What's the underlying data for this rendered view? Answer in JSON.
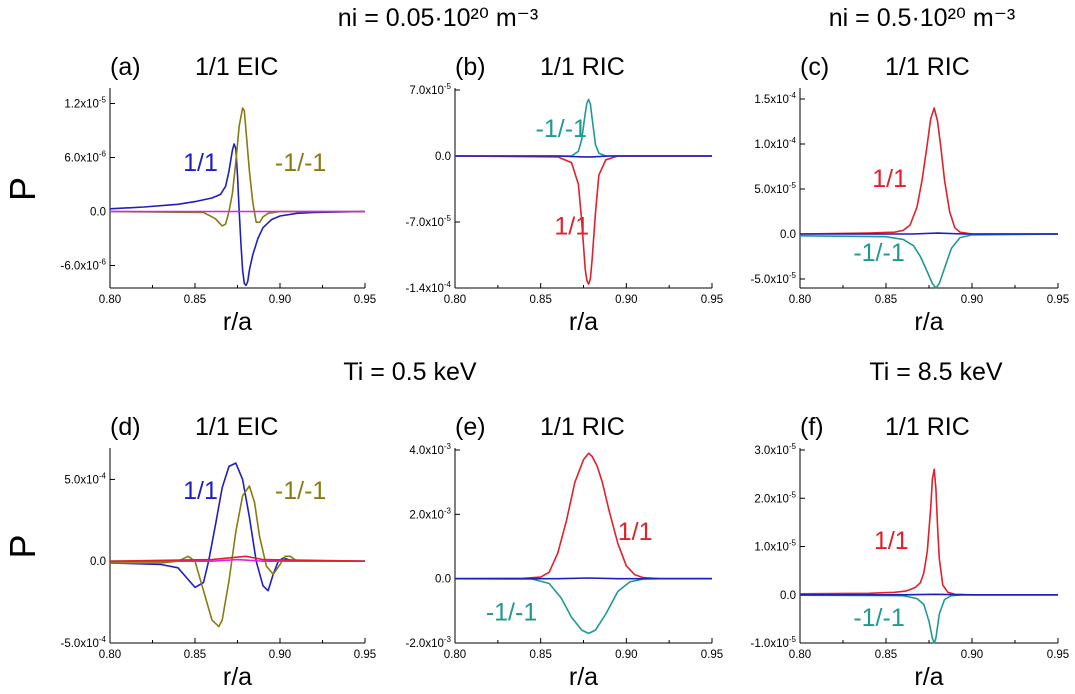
{
  "headers": {
    "ni_low": "ni = 0.05·10²⁰ m⁻³",
    "ni_high": "ni = 0.5·10²⁰ m⁻³",
    "ti_low": "Ti = 0.5 keV",
    "ti_high": "Ti = 8.5 keV"
  },
  "colors": {
    "blue": "#1f1fbf",
    "olive": "#8a7a12",
    "teal": "#1f9a92",
    "red": "#e0202a",
    "magenta": "#e020e0",
    "axis": "#000000"
  },
  "chart_data": [
    {
      "id": "a",
      "type": "line",
      "label": "(a)",
      "title": "1/1 EIC",
      "xlabel": "r/a",
      "ylabel": "P",
      "xlim": [
        0.8,
        0.95
      ],
      "ylim": [
        -8.5e-06,
        1.35e-05
      ],
      "xticks": [
        "0.80",
        "0.85",
        "0.90",
        "0.95"
      ],
      "yticks": [
        {
          "value": 1.2e-05,
          "mant": "1.2x10",
          "exp": "-5"
        },
        {
          "value": 6e-06,
          "mant": "6.0x10",
          "exp": "-6"
        },
        {
          "value": 0,
          "mant": "0.0",
          "exp": ""
        },
        {
          "value": -6e-06,
          "mant": "-6.0x10",
          "exp": "-6"
        }
      ],
      "series": [
        {
          "name": "1/1",
          "color": "blue",
          "label_at": [
            0.843,
            4.5e-06
          ],
          "x": [
            0.8,
            0.82,
            0.84,
            0.85,
            0.86,
            0.865,
            0.868,
            0.87,
            0.872,
            0.873,
            0.874,
            0.875,
            0.876,
            0.877,
            0.878,
            0.879,
            0.88,
            0.881,
            0.882,
            0.884,
            0.887,
            0.89,
            0.895,
            0.9,
            0.91,
            0.92,
            0.95
          ],
          "y": [
            3e-07,
            5e-07,
            8e-07,
            1.1e-06,
            1.5e-06,
            1.9e-06,
            2.8e-06,
            4.5e-06,
            6.8e-06,
            7.5e-06,
            7e-06,
            4e-06,
            0.0,
            -3.5e-06,
            -6.5e-06,
            -8e-06,
            -8.2e-06,
            -7.8e-06,
            -6.5e-06,
            -4.8e-06,
            -3e-06,
            -1.8e-06,
            -9e-07,
            -5e-07,
            -2e-07,
            -1e-07,
            0.0
          ]
        },
        {
          "name": "-1/-1",
          "color": "olive",
          "label_at": [
            0.897,
            4.5e-06
          ],
          "x": [
            0.8,
            0.855,
            0.862,
            0.866,
            0.868,
            0.87,
            0.872,
            0.874,
            0.876,
            0.878,
            0.879,
            0.88,
            0.882,
            0.884,
            0.886,
            0.888,
            0.89,
            0.893,
            0.9,
            0.95
          ],
          "y": [
            0.0,
            -1e-07,
            -8e-07,
            -1.6e-06,
            -1.4e-06,
            0.0,
            2e-06,
            5.5e-06,
            9.5e-06,
            1.15e-05,
            1.12e-05,
            9e-06,
            4.5e-06,
            1e-06,
            -1.2e-06,
            -1.2e-06,
            -6e-07,
            -2e-07,
            0.0,
            0.0
          ]
        },
        {
          "name": "",
          "color": "magenta",
          "x": [
            0.8,
            0.95
          ],
          "y": [
            0.0,
            0.0
          ]
        }
      ]
    },
    {
      "id": "b",
      "type": "line",
      "label": "(b)",
      "title": "1/1 RIC",
      "xlabel": "r/a",
      "ylabel": "",
      "xlim": [
        0.8,
        0.95
      ],
      "ylim": [
        -0.00014,
        7e-05
      ],
      "xticks": [
        "0.80",
        "0.85",
        "0.90",
        "0.95"
      ],
      "yticks": [
        {
          "value": 7e-05,
          "mant": "7.0x10",
          "exp": "-5"
        },
        {
          "value": 0,
          "mant": "0.0",
          "exp": ""
        },
        {
          "value": -7e-05,
          "mant": "-7.0x10",
          "exp": "-5"
        },
        {
          "value": -0.00014,
          "mant": "-1.4x10",
          "exp": "-4"
        }
      ],
      "series": [
        {
          "name": "-1/-1",
          "color": "teal",
          "label_at": [
            0.847,
            2e-05
          ],
          "x": [
            0.8,
            0.868,
            0.872,
            0.874,
            0.876,
            0.877,
            0.878,
            0.879,
            0.88,
            0.882,
            0.884,
            0.888,
            0.95
          ],
          "y": [
            0.0,
            0.0,
            5e-06,
            1.8e-05,
            4.5e-05,
            5.6e-05,
            6e-05,
            5.5e-05,
            4e-05,
            1.2e-05,
            3e-06,
            0.0,
            0.0
          ]
        },
        {
          "name": "1/1",
          "color": "red",
          "label_at": [
            0.858,
            -8.3e-05
          ],
          "x": [
            0.8,
            0.86,
            0.868,
            0.872,
            0.874,
            0.876,
            0.877,
            0.878,
            0.879,
            0.88,
            0.882,
            0.884,
            0.888,
            0.895,
            0.95
          ],
          "y": [
            0.0,
            -1e-06,
            -7e-06,
            -3e-05,
            -7e-05,
            -0.00012,
            -0.000132,
            -0.000136,
            -0.00013,
            -0.00011,
            -6e-05,
            -2e-05,
            -4e-06,
            0.0,
            0.0
          ]
        },
        {
          "name": "",
          "color": "blue",
          "x": [
            0.8,
            0.86,
            0.875,
            0.88,
            0.89,
            0.95
          ],
          "y": [
            0.0,
            0.0,
            -1e-06,
            -1e-06,
            0.0,
            0.0
          ]
        }
      ]
    },
    {
      "id": "c",
      "type": "line",
      "label": "(c)",
      "title": "1/1 RIC",
      "xlabel": "r/a",
      "ylabel": "",
      "xlim": [
        0.8,
        0.95
      ],
      "ylim": [
        -6e-05,
        0.00016
      ],
      "xticks": [
        "0.80",
        "0.85",
        "0.90",
        "0.95"
      ],
      "yticks": [
        {
          "value": 0.00015,
          "mant": "1.5x10",
          "exp": "-4"
        },
        {
          "value": 0.0001,
          "mant": "1.0x10",
          "exp": "-4"
        },
        {
          "value": 5e-05,
          "mant": "5.0x10",
          "exp": "-5"
        },
        {
          "value": 0,
          "mant": "0.0",
          "exp": ""
        },
        {
          "value": -5e-05,
          "mant": "-5.0x10",
          "exp": "-5"
        }
      ],
      "series": [
        {
          "name": "1/1",
          "color": "red",
          "label_at": [
            0.842,
            5.2e-05
          ],
          "x": [
            0.8,
            0.84,
            0.855,
            0.86,
            0.864,
            0.868,
            0.871,
            0.874,
            0.876,
            0.878,
            0.88,
            0.882,
            0.884,
            0.887,
            0.89,
            0.893,
            0.9,
            0.95
          ],
          "y": [
            0.0,
            1e-06,
            2e-06,
            4e-06,
            1e-05,
            3e-05,
            6e-05,
            0.0001,
            0.000128,
            0.00014,
            0.000125,
            9.5e-05,
            6e-05,
            2.5e-05,
            7e-06,
            2e-06,
            0.0,
            0.0
          ]
        },
        {
          "name": "-1/-1",
          "color": "teal",
          "label_at": [
            0.831,
            -3e-05
          ],
          "x": [
            0.8,
            0.85,
            0.86,
            0.866,
            0.87,
            0.874,
            0.877,
            0.879,
            0.881,
            0.884,
            0.888,
            0.893,
            0.9,
            0.95
          ],
          "y": [
            -2e-06,
            -3e-06,
            -6e-06,
            -1.3e-05,
            -2.5e-05,
            -4.2e-05,
            -5.5e-05,
            -6e-05,
            -5.5e-05,
            -3.8e-05,
            -1.6e-05,
            -4e-06,
            -1e-06,
            0.0
          ]
        },
        {
          "name": "",
          "color": "blue",
          "x": [
            0.8,
            0.865,
            0.88,
            0.895,
            0.95
          ],
          "y": [
            0.0,
            0.0,
            1e-06,
            0.0,
            0.0
          ]
        }
      ]
    },
    {
      "id": "d",
      "type": "line",
      "label": "(d)",
      "title": "1/1 EIC",
      "xlabel": "r/a",
      "ylabel": "P",
      "xlim": [
        0.8,
        0.95
      ],
      "ylim": [
        -0.0005,
        0.00068
      ],
      "xticks": [
        "0.80",
        "0.85",
        "0.90",
        "0.95"
      ],
      "yticks": [
        {
          "value": 0.0005,
          "mant": "5.0x10",
          "exp": "-4"
        },
        {
          "value": 0,
          "mant": "0.0",
          "exp": ""
        },
        {
          "value": -0.0005,
          "mant": "-5.0x10",
          "exp": "-4"
        }
      ],
      "series": [
        {
          "name": "1/1",
          "color": "blue",
          "label_at": [
            0.843,
            0.00038
          ],
          "x": [
            0.8,
            0.83,
            0.84,
            0.845,
            0.85,
            0.855,
            0.858,
            0.862,
            0.866,
            0.87,
            0.874,
            0.878,
            0.882,
            0.886,
            0.89,
            0.893,
            0.896,
            0.899,
            0.902,
            0.905,
            0.91,
            0.92,
            0.95
          ],
          "y": [
            -1e-05,
            -2e-05,
            -4e-05,
            -0.0001,
            -0.00016,
            -0.00013,
            0.0,
            0.00022,
            0.00045,
            0.00058,
            0.0006,
            0.0005,
            0.00027,
            0.0,
            -0.00015,
            -0.00018,
            -8e-05,
            0.0,
            2e-05,
            1e-05,
            0.0,
            0.0,
            0.0
          ]
        },
        {
          "name": "-1/-1",
          "color": "olive",
          "label_at": [
            0.897,
            0.00038
          ],
          "x": [
            0.8,
            0.83,
            0.84,
            0.846,
            0.85,
            0.855,
            0.86,
            0.864,
            0.866,
            0.87,
            0.874,
            0.878,
            0.882,
            0.885,
            0.888,
            0.892,
            0.896,
            0.9,
            0.903,
            0.906,
            0.91,
            0.92,
            0.95
          ],
          "y": [
            -1e-05,
            -1e-05,
            0.0,
            3e-05,
            0.0,
            -0.00018,
            -0.00036,
            -0.0004,
            -0.00036,
            -0.00012,
            0.00018,
            0.0004,
            0.00046,
            0.00036,
            0.00015,
            -3e-05,
            -8e-05,
            -2e-05,
            3e-05,
            3e-05,
            0.0,
            0.0,
            0.0
          ]
        },
        {
          "name": "",
          "color": "magenta",
          "x": [
            0.8,
            0.86,
            0.875,
            0.89,
            0.95
          ],
          "y": [
            0.0,
            0.0,
            1e-05,
            0.0,
            0.0
          ]
        },
        {
          "name": "",
          "color": "red",
          "x": [
            0.8,
            0.86,
            0.87,
            0.88,
            0.89,
            0.95
          ],
          "y": [
            0.0,
            1e-05,
            2e-05,
            3e-05,
            1e-05,
            0.0
          ]
        }
      ]
    },
    {
      "id": "e",
      "type": "line",
      "label": "(e)",
      "title": "1/1 RIC",
      "xlabel": "r/a",
      "ylabel": "",
      "xlim": [
        0.8,
        0.95
      ],
      "ylim": [
        -0.002,
        0.004
      ],
      "xticks": [
        "0.80",
        "0.85",
        "0.90",
        "0.95"
      ],
      "yticks": [
        {
          "value": 0.004,
          "mant": "4.0x10",
          "exp": "-3"
        },
        {
          "value": 0.002,
          "mant": "2.0x10",
          "exp": "-3"
        },
        {
          "value": 0,
          "mant": "0.0",
          "exp": ""
        },
        {
          "value": -0.002,
          "mant": "-2.0x10",
          "exp": "-3"
        }
      ],
      "series": [
        {
          "name": "1/1",
          "color": "red",
          "label_at": [
            0.895,
            0.0012
          ],
          "x": [
            0.8,
            0.84,
            0.85,
            0.855,
            0.86,
            0.865,
            0.87,
            0.875,
            0.878,
            0.88,
            0.883,
            0.886,
            0.89,
            0.895,
            0.9,
            0.905,
            0.91,
            0.92,
            0.95
          ],
          "y": [
            0.0,
            1e-05,
            5e-05,
            0.0002,
            0.0008,
            0.0018,
            0.003,
            0.0037,
            0.0039,
            0.0038,
            0.0035,
            0.003,
            0.0021,
            0.0011,
            0.0004,
            0.00012,
            3e-05,
            0.0,
            0.0
          ]
        },
        {
          "name": "-1/-1",
          "color": "teal",
          "label_at": [
            0.818,
            -0.0013
          ],
          "x": [
            0.8,
            0.845,
            0.855,
            0.862,
            0.868,
            0.874,
            0.878,
            0.882,
            0.888,
            0.895,
            0.902,
            0.91,
            0.92,
            0.95
          ],
          "y": [
            0.0,
            -1e-05,
            -0.00015,
            -0.0006,
            -0.0012,
            -0.0016,
            -0.0017,
            -0.0016,
            -0.0011,
            -0.0004,
            -0.0001,
            -1e-05,
            0.0,
            0.0
          ]
        },
        {
          "name": "",
          "color": "blue",
          "x": [
            0.8,
            0.86,
            0.878,
            0.895,
            0.95
          ],
          "y": [
            0.0,
            0.0,
            2e-05,
            0.0,
            0.0
          ]
        }
      ]
    },
    {
      "id": "f",
      "type": "line",
      "label": "(f)",
      "title": "1/1 RIC",
      "xlabel": "r/a",
      "ylabel": "",
      "xlim": [
        0.8,
        0.95
      ],
      "ylim": [
        -1e-05,
        3e-05
      ],
      "xticks": [
        "0.80",
        "0.85",
        "0.90",
        "0.95"
      ],
      "yticks": [
        {
          "value": 3e-05,
          "mant": "3.0x10",
          "exp": "-5"
        },
        {
          "value": 2e-05,
          "mant": "2.0x10",
          "exp": "-5"
        },
        {
          "value": 1e-05,
          "mant": "1.0x10",
          "exp": "-5"
        },
        {
          "value": 0,
          "mant": "0.0",
          "exp": ""
        },
        {
          "value": -1e-05,
          "mant": "-1.0x10",
          "exp": "-5"
        }
      ],
      "series": [
        {
          "name": "1/1",
          "color": "red",
          "label_at": [
            0.843,
            9.5e-06
          ],
          "x": [
            0.8,
            0.84,
            0.855,
            0.862,
            0.867,
            0.87,
            0.872,
            0.874,
            0.876,
            0.877,
            0.878,
            0.879,
            0.88,
            0.881,
            0.883,
            0.886,
            0.89,
            0.9,
            0.95
          ],
          "y": [
            2e-07,
            3e-07,
            5e-07,
            8e-07,
            1.5e-06,
            2.5e-06,
            4.5e-06,
            9e-06,
            1.8e-05,
            2.4e-05,
            2.6e-05,
            2.2e-05,
            1.4e-05,
            7.5e-06,
            2e-06,
            5e-07,
            1e-07,
            0.0,
            0.0
          ]
        },
        {
          "name": "-1/-1",
          "color": "teal",
          "label_at": [
            0.831,
            -6.5e-06
          ],
          "x": [
            0.8,
            0.86,
            0.868,
            0.872,
            0.875,
            0.877,
            0.878,
            0.879,
            0.881,
            0.884,
            0.888,
            0.895,
            0.95
          ],
          "y": [
            -1e-07,
            -2e-07,
            -8e-07,
            -2e-06,
            -5.5e-06,
            -9e-06,
            -1e-05,
            -9e-06,
            -4e-06,
            -1e-06,
            -2e-07,
            0.0,
            0.0
          ]
        },
        {
          "name": "",
          "color": "blue",
          "x": [
            0.8,
            0.86,
            0.878,
            0.895,
            0.95
          ],
          "y": [
            0.0,
            0.0,
            1e-07,
            0.0,
            0.0
          ]
        }
      ]
    }
  ]
}
